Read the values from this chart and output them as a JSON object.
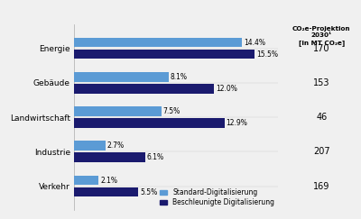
{
  "categories": [
    "Energie",
    "Gebäude",
    "Landwirtschaft",
    "Industrie",
    "Verkehr"
  ],
  "standard": [
    14.4,
    8.1,
    7.5,
    2.7,
    2.1
  ],
  "accelerated": [
    15.5,
    12.0,
    12.9,
    6.1,
    5.5
  ],
  "projections": [
    "170",
    "153",
    "46",
    "207",
    "169"
  ],
  "color_standard": "#5b9bd5",
  "color_accelerated": "#1a1a6e",
  "legend_standard": "Standard-Digitalisierung",
  "legend_accelerated": "Beschleunigte Digitalisierung",
  "right_panel_title": "CO₂e-Projektion\n2030¹\n[in MT CO₂e]",
  "right_panel_bg": "#dce9f5",
  "fig_bg": "#f0f0f0",
  "chart_bg": "#f0f0f0",
  "xlim_max": 17.5,
  "bar_height": 0.28,
  "bar_gap": 0.06,
  "label_fontsize": 5.5,
  "ytick_fontsize": 6.5,
  "legend_fontsize": 5.5,
  "proj_fontsize": 7.0,
  "proj_title_fontsize": 5.2
}
